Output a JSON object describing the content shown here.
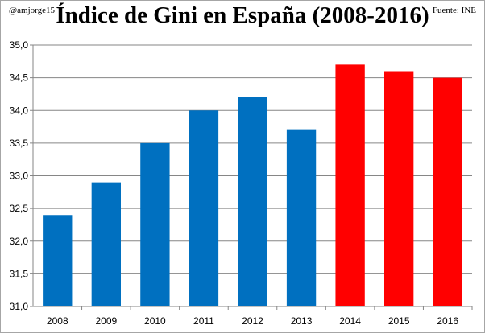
{
  "header": {
    "author": "@amjorge15",
    "source": "Fuente: INE"
  },
  "chart_data": {
    "type": "bar",
    "title": "Índice de Gini en España (2008-2016)",
    "xlabel": "",
    "ylabel": "",
    "categories": [
      "2008",
      "2009",
      "2010",
      "2011",
      "2012",
      "2013",
      "2014",
      "2015",
      "2016"
    ],
    "values": [
      32.4,
      32.9,
      33.5,
      34.0,
      34.2,
      33.7,
      34.7,
      34.6,
      34.5
    ],
    "bar_colors": [
      "#0070c0",
      "#0070c0",
      "#0070c0",
      "#0070c0",
      "#0070c0",
      "#0070c0",
      "#ff0000",
      "#ff0000",
      "#ff0000"
    ],
    "ylim": [
      31.0,
      35.0
    ],
    "yticks": [
      31.0,
      31.5,
      32.0,
      32.5,
      33.0,
      33.5,
      34.0,
      34.5,
      35.0
    ],
    "ytick_labels": [
      "31,0",
      "31,5",
      "32,0",
      "32,5",
      "33,0",
      "33,5",
      "34,0",
      "34,5",
      "35,0"
    ],
    "grid": true,
    "legend": "none",
    "colors": {
      "grid": "#868686",
      "axis": "#868686"
    }
  }
}
